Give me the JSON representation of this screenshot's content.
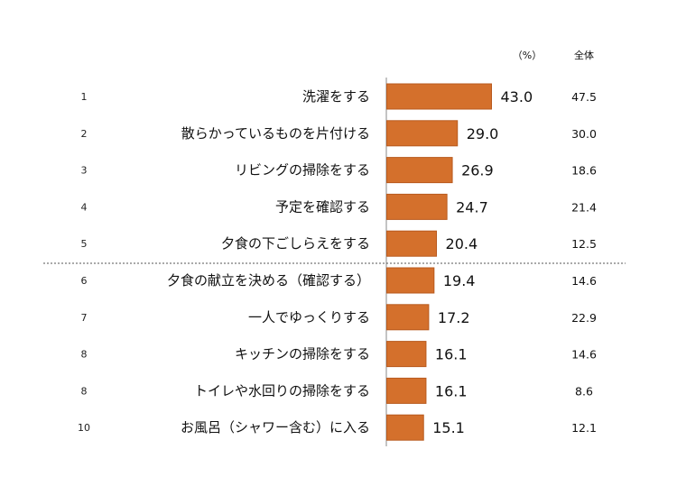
{
  "chart_data": {
    "type": "bar",
    "orientation": "horizontal",
    "unit_label": "（%）",
    "total_column_label": "全体",
    "ranks": [
      "1",
      "2",
      "3",
      "4",
      "5",
      "6",
      "7",
      "8",
      "8",
      "10"
    ],
    "categories": [
      "洗濯をする",
      "散らかっているものを片付ける",
      "リビングの掃除をする",
      "予定を確認する",
      "夕食の下ごしらえをする",
      "夕食の献立を決める（確認する）",
      "一人でゆっくりする",
      "キッチンの掃除をする",
      "トイレや水回りの掃除をする",
      "お風呂（シャワー含む）に入る"
    ],
    "values": [
      43.0,
      29.0,
      26.9,
      24.7,
      20.4,
      19.4,
      17.2,
      16.1,
      16.1,
      15.1
    ],
    "value_labels": [
      "43.0",
      "29.0",
      "26.9",
      "24.7",
      "20.4",
      "19.4",
      "17.2",
      "16.1",
      "16.1",
      "15.1"
    ],
    "total_values": [
      "47.5",
      "30.0",
      "18.6",
      "21.4",
      "12.5",
      "14.6",
      "22.9",
      "14.6",
      "8.6",
      "12.1"
    ],
    "divider_after_rank": 5,
    "bar_color": "#D4702C",
    "bar_border_color": "#B85A1E"
  }
}
